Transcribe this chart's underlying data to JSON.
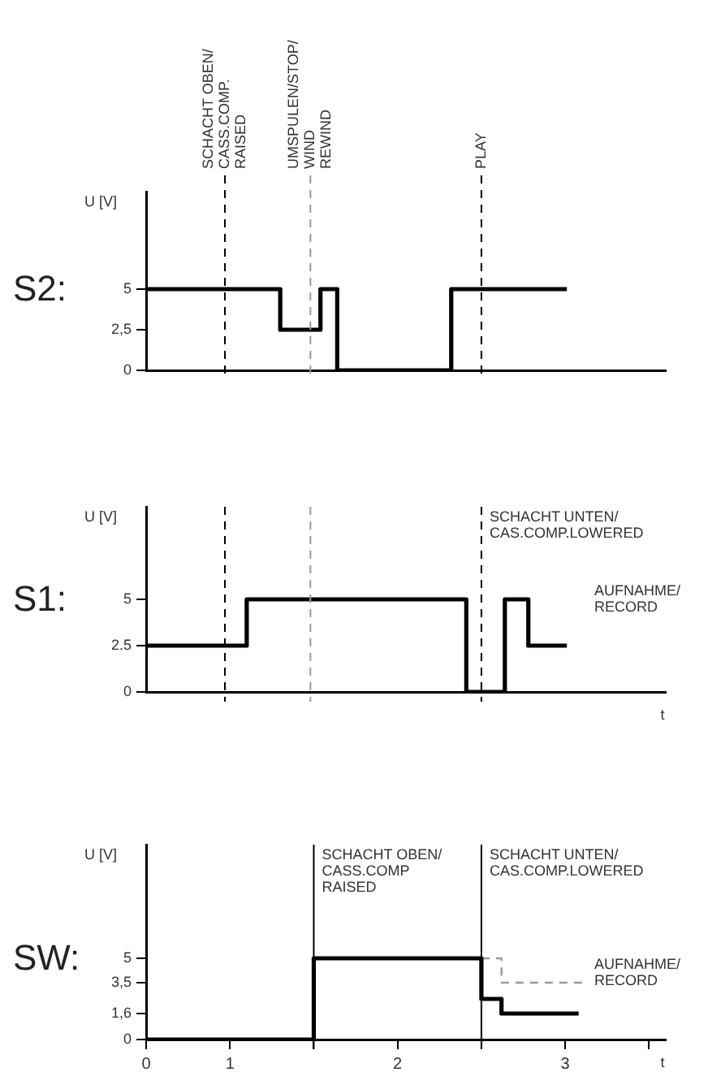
{
  "chart_data": [
    {
      "type": "step",
      "title": "S2:",
      "ylabel": "U [V]",
      "marker": "none",
      "legend": false,
      "tick_labels": "y",
      "xlim": [
        0,
        3.1
      ],
      "ylim": [
        0,
        11
      ],
      "yticks": [
        0,
        {
          "value": 2.5,
          "label": "2,5"
        },
        5
      ],
      "series": [
        {
          "color": "#000000",
          "x": [
            0,
            0.8,
            1.04,
            1.14,
            1.82,
            2.51
          ],
          "values": [
            5,
            2.5,
            5,
            0,
            5,
            5
          ]
        }
      ],
      "ref_lines": [
        {
          "axis": "x",
          "value": 0.47,
          "label": "SCHACHT OBEN/\nCASS.COMP.\nRAISED",
          "line_style": "dashed",
          "color": "#000000"
        },
        {
          "axis": "x",
          "value": 0.98,
          "label": "UMSPULEN/STOP/\nWIND\nREWIND",
          "line_style": "dashed",
          "color": "#999999"
        },
        {
          "axis": "x",
          "value": 2.0,
          "label": "PLAY",
          "line_style": "dashed",
          "color": "#000000"
        }
      ]
    },
    {
      "type": "step",
      "title": "S1:",
      "ylabel": "U [V]",
      "xlabel": "t",
      "marker": "none",
      "legend": false,
      "tick_labels": "y",
      "xlim": [
        0,
        3.1
      ],
      "ylim": [
        0,
        10
      ],
      "yticks": [
        0,
        2.5,
        5
      ],
      "series": [
        {
          "color": "#000000",
          "x": [
            0,
            0.6,
            1.91,
            2.14,
            2.28,
            2.51
          ],
          "values": [
            2.5,
            5,
            0,
            5,
            2.5,
            2.5
          ]
        }
      ],
      "ref_lines": [
        {
          "axis": "x",
          "value": 0.47,
          "line_style": "dashed",
          "color": "#000000"
        },
        {
          "axis": "x",
          "value": 0.98,
          "line_style": "dashed",
          "color": "#999999"
        },
        {
          "axis": "x",
          "value": 2.0,
          "label": "SCHACHT UNTEN/\nCAS.COMP.LOWERED",
          "line_style": "dashed",
          "color": "#000000"
        }
      ],
      "annotations": [
        "AUFNAHME/\nRECORD"
      ]
    },
    {
      "type": "step",
      "title": "SW:",
      "ylabel": "U [V]",
      "xlabel": "t",
      "marker": "none",
      "legend": false,
      "xlim": [
        0,
        3.1
      ],
      "ylim": [
        0,
        12
      ],
      "yticks": [
        0,
        {
          "value": 1.6,
          "label": "1,6"
        },
        {
          "value": 3.5,
          "label": "3,5"
        },
        5
      ],
      "xticks": [
        0,
        {
          "value": 0.5,
          "label": "1"
        },
        {
          "value": 1,
          "label": null
        },
        {
          "value": 1.5,
          "label": "2"
        },
        {
          "value": 2,
          "label": null
        },
        {
          "value": 2.5,
          "label": "3"
        },
        {
          "value": 3,
          "label": null
        }
      ],
      "series": [
        {
          "color": "#000000",
          "x": [
            0,
            1,
            2,
            2.12,
            2.58
          ],
          "values": [
            0,
            5,
            2.5,
            1.6,
            1.6
          ]
        },
        {
          "color": "#999999",
          "line_style": "dashed",
          "x": [
            2,
            2.12,
            2.6
          ],
          "values": [
            5,
            3.5,
            3.5
          ]
        }
      ],
      "ref_lines": [
        {
          "axis": "x",
          "value": 1.0,
          "label": "SCHACHT OBEN/\nCASS.COMP\nRAISED",
          "line_style": "solid",
          "color": "#000000"
        },
        {
          "axis": "x",
          "value": 2.0,
          "label": "SCHACHT UNTEN/\nCAS.COMP.LOWERED",
          "line_style": "solid",
          "color": "#000000"
        }
      ],
      "annotations": [
        "AUFNAHME/\nRECORD"
      ]
    }
  ]
}
